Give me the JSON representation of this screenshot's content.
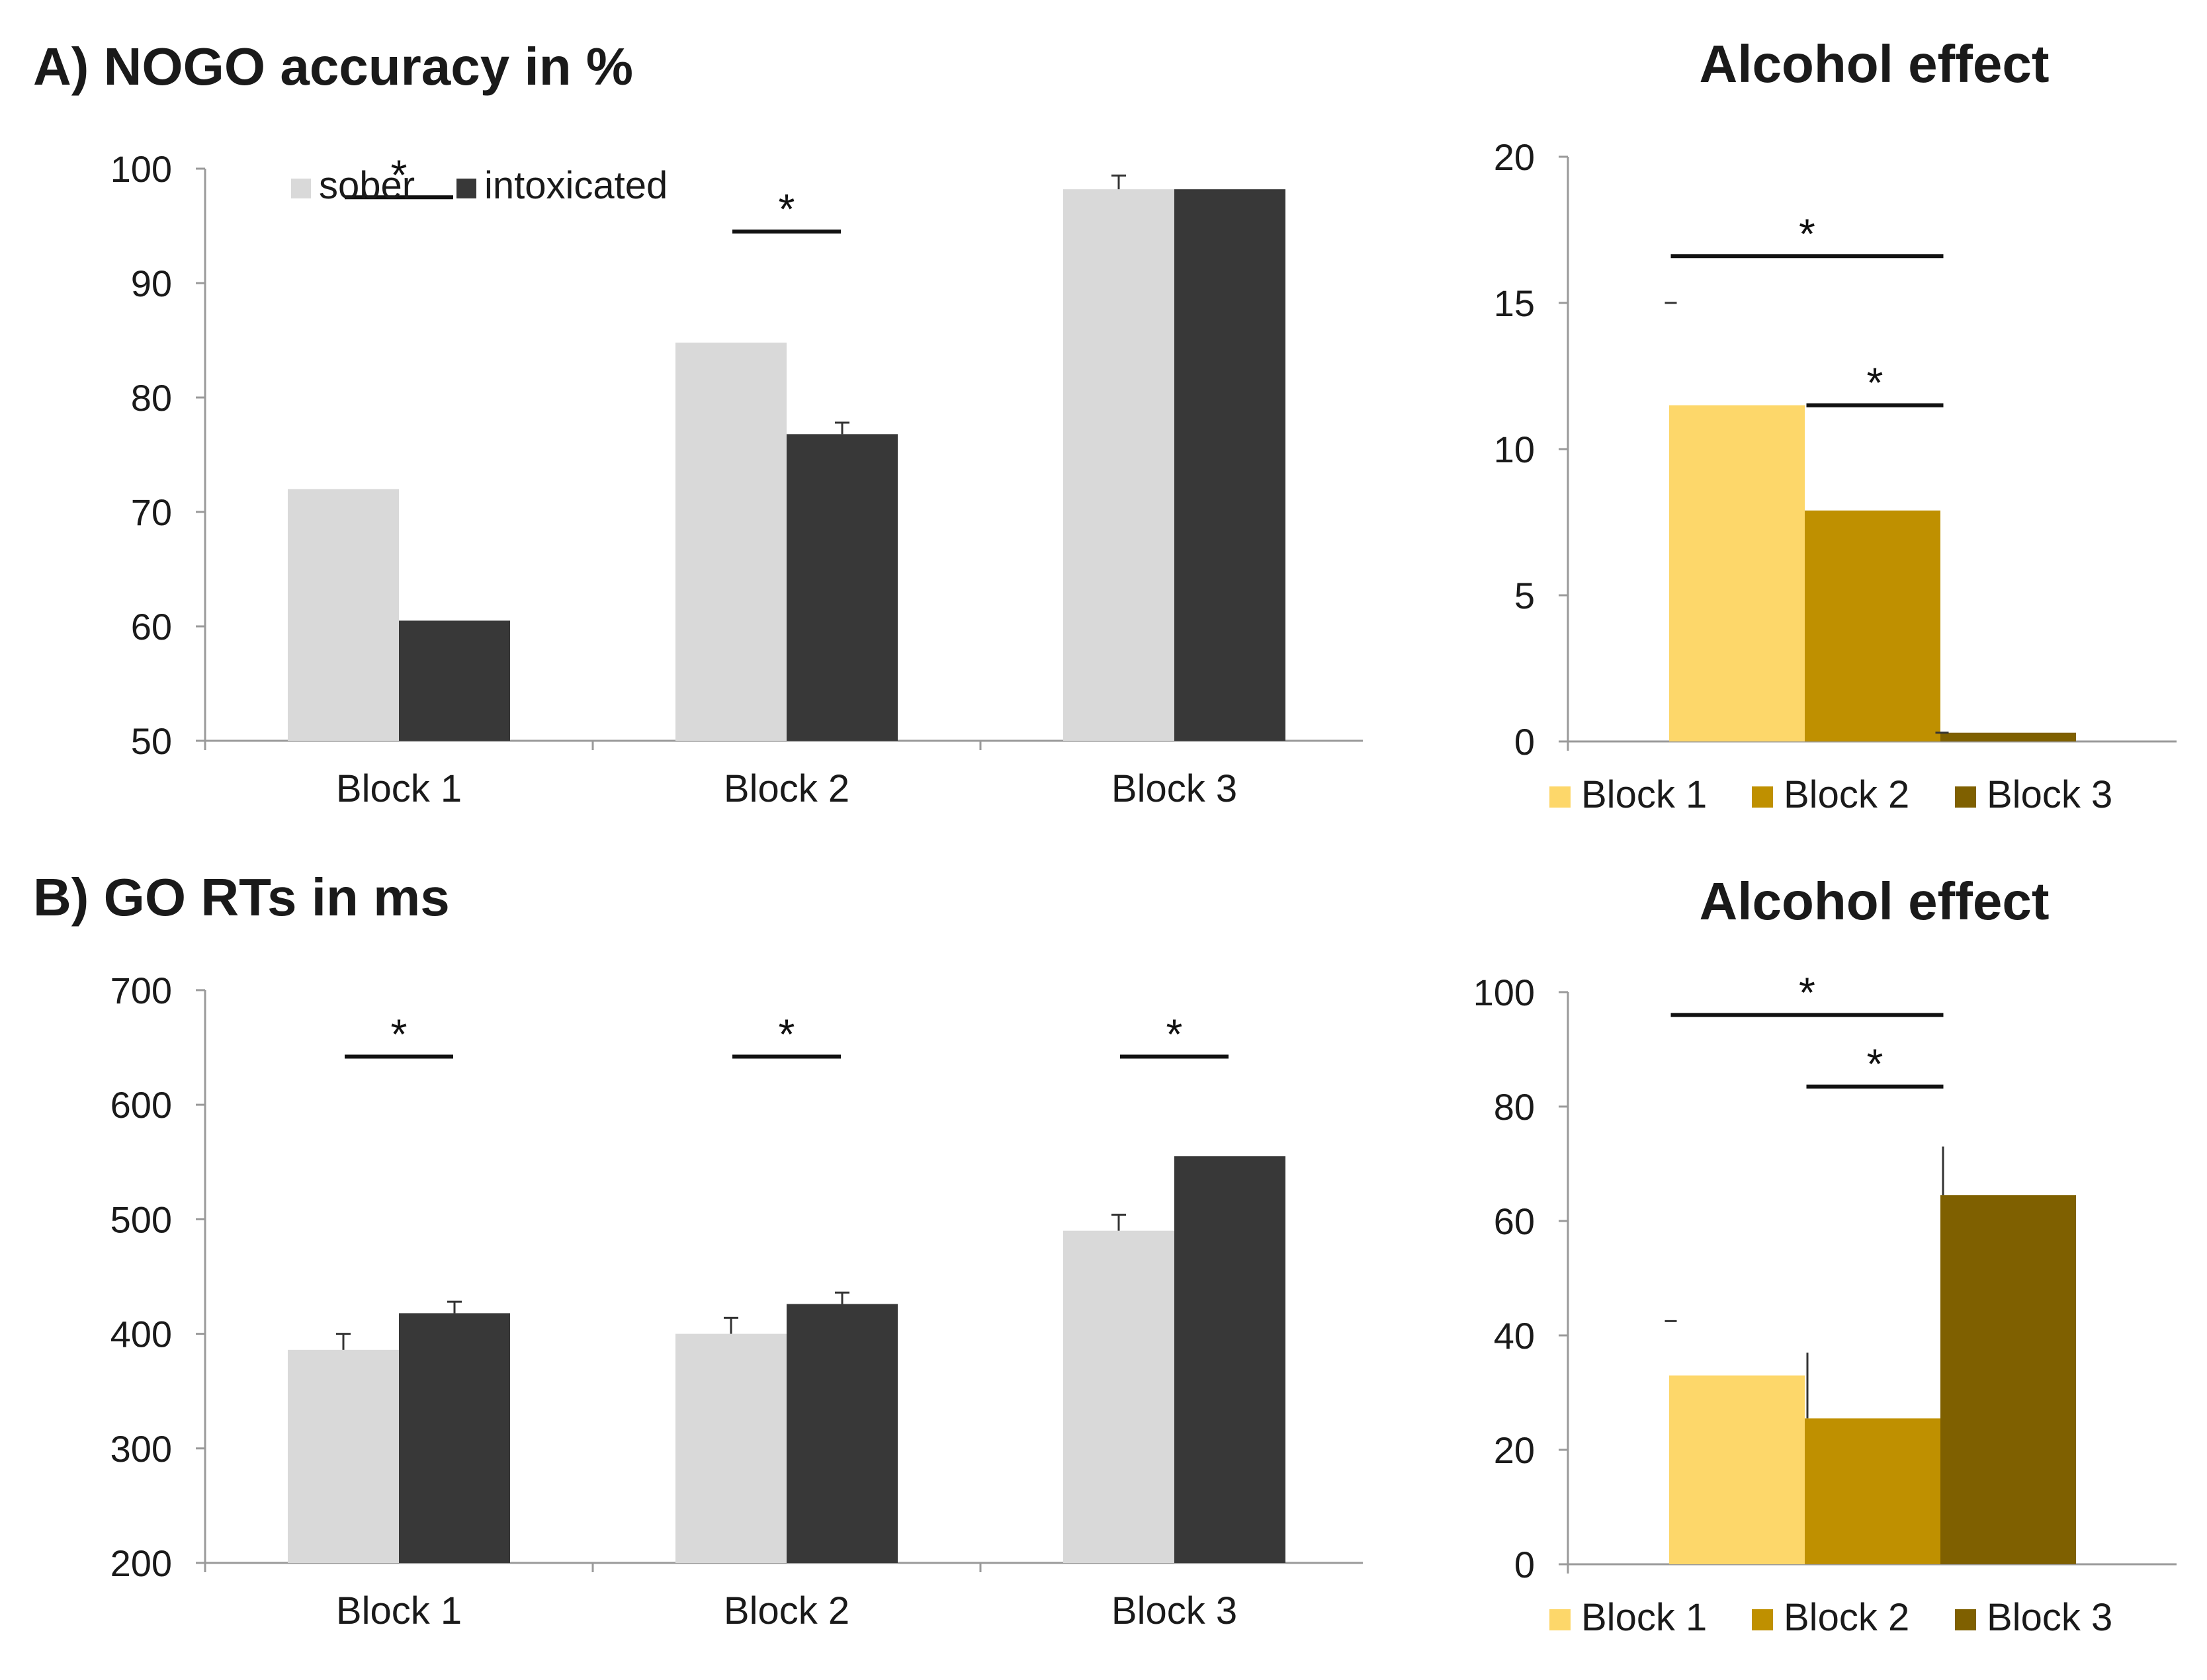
{
  "figure": {
    "panel_a_title": "A) NOGO accuracy in %",
    "panel_b_title": "B) GO RTs in ms"
  },
  "colors": {
    "sober": "#d9d9d9",
    "intoxicated": "#383838",
    "block1": "#fdd76a",
    "block2": "#bf9000",
    "block3": "#7f6000"
  },
  "chart_data": [
    {
      "id": "nogo",
      "type": "bar",
      "title": "A) NOGO accuracy in %",
      "xlabel": "",
      "ylabel": "",
      "categories": [
        "Block 1",
        "Block 2",
        "Block 3"
      ],
      "ylim": [
        50,
        100
      ],
      "yticks": [
        "100",
        "90",
        "80",
        "70",
        "60",
        "50"
      ],
      "series": [
        {
          "name": "sober",
          "values": [
            72,
            84.8,
            98.2
          ],
          "errors": [
            0,
            0,
            1.2
          ]
        },
        {
          "name": "intoxicated",
          "values": [
            60.5,
            76.8,
            98.2
          ],
          "errors": [
            0,
            1.0,
            0
          ]
        }
      ],
      "legend": {
        "position": "top-left",
        "entries": [
          "sober",
          "intoxicated"
        ]
      },
      "significance": [
        {
          "label": "*",
          "from": [
            0,
            0
          ],
          "to": [
            0,
            1
          ],
          "y": 97.5
        },
        {
          "label": "*",
          "from": [
            1,
            0
          ],
          "to": [
            1,
            1
          ],
          "y": 94.5
        }
      ]
    },
    {
      "id": "nogo_effect",
      "type": "bar",
      "title": "Alcohol effect",
      "categories": [
        "Block 1",
        "Block 2",
        "Block 3"
      ],
      "ylim": [
        0,
        20
      ],
      "yticks": [
        "20",
        "15",
        "10",
        "5",
        "0"
      ],
      "values": [
        11.5,
        7.9,
        0.3
      ],
      "errors": [
        3.5,
        0,
        0
      ],
      "legend": {
        "position": "bottom",
        "entries": [
          "Block 1",
          "Block 2",
          "Block 3"
        ]
      },
      "significance": [
        {
          "label": "*",
          "from": 0,
          "to": 2,
          "y": 16.6
        },
        {
          "label": "*",
          "from": 1,
          "to": 2,
          "y": 11.5
        }
      ]
    },
    {
      "id": "go_rt",
      "type": "bar",
      "title": "B) GO RTs in ms",
      "categories": [
        "Block 1",
        "Block 2",
        "Block 3"
      ],
      "ylim": [
        200,
        700
      ],
      "yticks": [
        "700",
        "600",
        "500",
        "400",
        "300",
        "200"
      ],
      "series": [
        {
          "name": "sober",
          "values": [
            386,
            400,
            490
          ],
          "errors": [
            14,
            14,
            14
          ]
        },
        {
          "name": "intoxicated",
          "values": [
            418,
            426,
            555
          ],
          "errors": [
            10,
            10,
            0
          ]
        }
      ],
      "significance": [
        {
          "label": "*",
          "from": [
            0,
            0
          ],
          "to": [
            0,
            1
          ],
          "y": 642
        },
        {
          "label": "*",
          "from": [
            1,
            0
          ],
          "to": [
            1,
            1
          ],
          "y": 642
        },
        {
          "label": "*",
          "from": [
            2,
            0
          ],
          "to": [
            2,
            1
          ],
          "y": 642
        }
      ]
    },
    {
      "id": "go_effect",
      "type": "bar",
      "title": "Alcohol effect",
      "categories": [
        "Block 1",
        "Block 2",
        "Block 3"
      ],
      "ylim": [
        0,
        100
      ],
      "yticks": [
        "100",
        "80",
        "60",
        "40",
        "20",
        "0"
      ],
      "values": [
        33,
        25.5,
        64.5
      ],
      "errors": [
        9.5,
        11.5,
        8.5
      ],
      "legend": {
        "position": "bottom",
        "entries": [
          "Block 1",
          "Block 2",
          "Block 3"
        ]
      },
      "significance": [
        {
          "label": "*",
          "from": 0,
          "to": 2,
          "y": 96
        },
        {
          "label": "*",
          "from": 1,
          "to": 2,
          "y": 83.5
        }
      ]
    }
  ]
}
